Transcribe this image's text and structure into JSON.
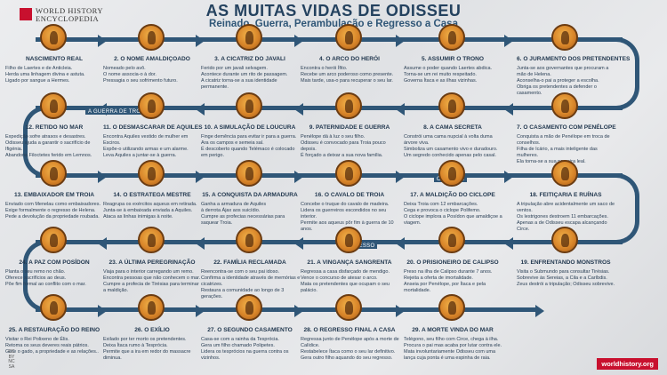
{
  "brand": {
    "line1": "WORLD HISTORY",
    "line2": "ENCYCLOPEDIA",
    "url": "worldhistory.org"
  },
  "license": {
    "line1": "CC",
    "line2": "BY",
    "line3": "NC",
    "line4": "SA"
  },
  "title": "AS MUITAS VIDAS DE ODISSEU",
  "subtitle": "Reinado, Guerra, Perambulação e Regresso a Casa",
  "lanes": {
    "troy": "A GUERRA DE TROIA",
    "odyssey": "ODISSEIA",
    "return": "REGRESSO"
  },
  "colors": {
    "path": "#2f5677",
    "medal": "#d9862a",
    "brand": "#c8102e"
  },
  "steps": [
    {
      "title": "NASCIMENTO REAL",
      "desc": [
        "Filho de Laertes e de Anticleia.",
        "Herda uma linhagem divina e astuta.",
        "Ligado por sangue a Hermes."
      ]
    },
    {
      "title": "2. O NOME AMALDIÇOADO",
      "desc": [
        "Nomeado pelo avô.",
        "O nome associa-o à dor.",
        "Pressagia o seu sofrimento futuro."
      ]
    },
    {
      "title": "3. A CICATRIZ DO JAVALI",
      "desc": [
        "Ferido por um javali selvagem.",
        "Acontece durante um rito de passagem.",
        "A cicatriz torna-se a sua identidade permanente."
      ]
    },
    {
      "title": "4. O ARCO DO HERÓI",
      "desc": [
        "Encontra o herói Ífito.",
        "Recebe um arco poderoso como presente.",
        "Mais tarde, usa-o para recuperar o seu lar."
      ]
    },
    {
      "title": "5. ASSUMIR O TRONO",
      "desc": [
        "Assume o poder quando Laertes abdica.",
        "Torna-se um rei muito respeitado.",
        "Governa Ítaca e as ilhas vizinhas."
      ]
    },
    {
      "title": "6. O JURAMENTO DOS PRETENDENTES",
      "desc": [
        "Junta-se aos governantes que procuram a mão de Helena.",
        "Aconselha-o pai a proteger a escolha.",
        "Obriga os pretendentes a defender o casamento."
      ]
    },
    {
      "title": "7. O CASAMENTO COM PENÉLOPE",
      "desc": [
        "Conquista a mão de Penélope em troca de conselhos.",
        "Filha de Icário, a mais inteligente das mulheres.",
        "Ela torna-se a sua parceira leal."
      ]
    },
    {
      "title": "8. A CAMA SECRETA",
      "desc": [
        "Constrói uma cama nupcial à volta duma árvore viva.",
        "Simboliza um casamento vivo e duradouro.",
        "Um segredo conhecido apenas pelo casal."
      ]
    },
    {
      "title": "9. PATERNIDADE E GUERRA",
      "desc": [
        "Penélope dá à luz o seu filho.",
        "Odisseu é convocado para Troia pouco depois.",
        "É forçado a deixar a sua nova família."
      ]
    },
    {
      "title": "10. A SIMULAÇÃO DE LOUCURA",
      "desc": [
        "Finge demência para evitar ir para a guerra.",
        "Ara os campos e semeia sal.",
        "É descoberto quando Telémaco é colocado em perigo."
      ]
    },
    {
      "title": "11. O DESMASCARAR DE AQUILES",
      "desc": [
        "Encontra Aquiles vestido de mulher em Esciros.",
        "Expõe-o utilizando armas e um alarme.",
        "Leva Aquiles a juntar-se à guerra."
      ]
    },
    {
      "title": "12. RETIDO NO MAR",
      "desc": [
        "Expedição sofre atrasos e desastres.",
        "Odisseu ajuda a garantir o sacrifício de Ifigénia.",
        "Abandona Filoctetes ferido em Lemnos."
      ]
    },
    {
      "title": "13. EMBAIXADOR EM TROIA",
      "desc": [
        "Enviado com Menelau como embaixadores.",
        "Exige formalmente o regresso de Helena.",
        "Pede a devolução da propriedade roubada."
      ]
    },
    {
      "title": "14. O ESTRATEGA MESTRE",
      "desc": [
        "Reagrupa os exércitos aqueus em retirada.",
        "Junta-se à embaixada enviada a Aquiles.",
        "Ataca as linhas inimigas à noite."
      ]
    },
    {
      "title": "15. A CONQUISTA DA ARMADURA",
      "desc": [
        "Ganha a armadura de Aquiles",
        "à derrota Ájax aos suicídio.",
        "Cumpre as profecias necessárias para saquear Troia."
      ]
    },
    {
      "title": "16. O CAVALO DE TROIA",
      "desc": [
        "Concebe o truque do cavalo de madeira.",
        "Lidera os guerreiros escondidos no seu interior.",
        "Permite aos aqueus pôr fim à guerra de 10 anos."
      ]
    },
    {
      "title": "17. A MALDIÇÃO DO CICLOPE",
      "desc": [
        "Deixa Troia com 12 embarcações.",
        "Cega e provoca o ciclope Polifemo.",
        "O ciclope implora a Posídon que amaldiçoe a viagem."
      ]
    },
    {
      "title": "18. FEITIÇARIA E RUÍNAS",
      "desc": [
        "A tripulação abre acidentalmente um saco de ventos.",
        "Os lestrigones destroem 11 embarcações.",
        "Apenas a de Odisseu escapa alcançando Circe."
      ]
    },
    {
      "title": "19. ENFRENTANDO MONSTROS",
      "desc": [
        "Visita o Submundo para consultar Tirésias.",
        "Sobrevive às Sereias, a Cila e a Caríbdis.",
        "Zeus destrói a tripulação; Odisseu sobrevive."
      ]
    },
    {
      "title": "20. O PRISIONEIRO DE CALIPSO",
      "desc": [
        "Preso na ilha de Calipso durante 7 anos.",
        "Rejeita a oferta de imortalidade.",
        "Anseia por Penélope, por Ítaca e pela mortalidade."
      ]
    },
    {
      "title": "21. A VINGANÇA SANGRENTA",
      "desc": [
        "Regressa a casa disfarçado de mendigo.",
        "Vence o concurso de atesar o arco.",
        "Mata os pretendentes que ocupam o seu palácio."
      ]
    },
    {
      "title": "22. FAMÍLIA RECLAMADA",
      "desc": [
        "Reencontra-se com o seu pai idoso.",
        "Confirma a identidade através de memórias e cicatrizes.",
        "Restaura a comunidade ao longo de 3 gerações."
      ]
    },
    {
      "title": "23. A ÚLTIMA PEREGRINAÇÃO",
      "desc": [
        "Viaja para o interior carregando um remo.",
        "Encontra pessoas que não conhecem o mar.",
        "Cumpre a profecia de Tirésias para terminar a maldição."
      ]
    },
    {
      "title": "24. A PAZ COM POSÍDON",
      "desc": [
        "Planta o seu remo no chão.",
        "Oferece sacrifícios ao deus.",
        "Põe fim formal ao conflito com o mar."
      ]
    },
    {
      "title": "25. A RESTAURAÇÃO DO REINO",
      "desc": [
        "Visitar o Rei Polixeno de Élis.",
        "Retoma os seus deveres reais pátrios.",
        "Gere o gado, a propriedade e as relações.."
      ]
    },
    {
      "title": "26. O EXÍLIO",
      "desc": [
        "Exilado por ter morto os pretendentes.",
        "Deixa Ítaca rumo à Tesprócia.",
        "Permite que a ira em redor do massacre diminua."
      ]
    },
    {
      "title": "27. O SEGUNDO CASAMENTO",
      "desc": [
        "Casa-se com a rainha da Tesprócia.",
        "Gera um filho chamado Polipetes.",
        "Lidera os tesprócios na guerra contra os vizinhos."
      ]
    },
    {
      "title": "28. O REGRESSO FINAL A CASA",
      "desc": [
        "Regressa junto de Penélope após a morte de Calídice.",
        "Restabelece Ítaca como o seu lar definitivo.",
        "Gera outro filho aquando do seu regresso."
      ]
    },
    {
      "title": "29. A MORTE VINDA DO MAR",
      "desc": [
        "Telégono, seu filho com Circe, chega à ilha.",
        "Procura o pai mas acaba por lutar contra ele.",
        "Mata involuntariamente Odisseu com uma lança cuja ponta é uma espinha de raia."
      ]
    }
  ]
}
